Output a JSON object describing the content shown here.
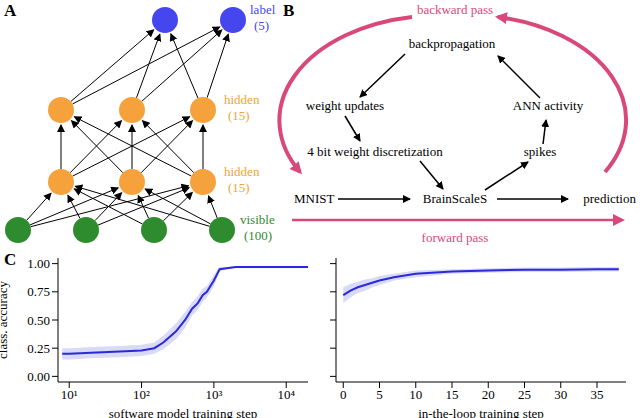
{
  "panels": {
    "A": {
      "letter": "A",
      "layers": [
        {
          "name": "visible",
          "count": "(100)",
          "color": "#2e8b2e",
          "nodes": 4
        },
        {
          "name": "hidden",
          "count": "(15)",
          "color": "#f5a23c",
          "nodes": 3
        },
        {
          "name": "hidden",
          "count": "(15)",
          "color": "#f5a23c",
          "nodes": 3
        },
        {
          "name": "label",
          "count": "(5)",
          "color": "#4646ee",
          "nodes": 2
        }
      ]
    },
    "B": {
      "letter": "B",
      "backward": "backward pass",
      "forward": "forward pass",
      "cycle": [
        "backpropagation",
        "weight updates",
        "4 bit weight discretization",
        "BrainScaleS",
        "spikes",
        "ANN activity"
      ],
      "input": "MNIST",
      "output": "prediction"
    },
    "C": {
      "letter": "C"
    }
  },
  "chart_data": [
    {
      "type": "line",
      "color": "#2a2ad6",
      "x": [
        8,
        10,
        20,
        50,
        100,
        150,
        200,
        300,
        400,
        500,
        600,
        700,
        800,
        1000,
        1200,
        1500,
        2000,
        5000,
        10000,
        20000
      ],
      "values": [
        0.2,
        0.2,
        0.21,
        0.22,
        0.23,
        0.25,
        0.3,
        0.4,
        0.5,
        0.6,
        0.65,
        0.72,
        0.75,
        0.85,
        0.95,
        0.96,
        0.97,
        0.97,
        0.97,
        0.97
      ],
      "error": [
        0.05,
        0.05,
        0.05,
        0.05,
        0.05,
        0.05,
        0.06,
        0.07,
        0.07,
        0.06,
        0.06,
        0.06,
        0.05,
        0.05,
        0.02,
        0.01,
        0.01,
        0.01,
        0.01,
        0.01
      ],
      "log": "x",
      "xlim": [
        7,
        20000
      ],
      "xticks": [
        {
          "value": 10,
          "label": "10¹"
        },
        {
          "value": 100,
          "label": "10²"
        },
        {
          "value": 1000,
          "label": "10³"
        },
        {
          "value": 10000,
          "label": "10⁴"
        }
      ],
      "ylim": [
        -0.05,
        1.05
      ],
      "yticks": [
        {
          "value": 0,
          "label": "0.00"
        },
        {
          "value": 0.25,
          "label": "0.25"
        },
        {
          "value": 0.5,
          "label": "0.50"
        },
        {
          "value": 0.75,
          "label": "0.75"
        },
        {
          "value": 1,
          "label": "1.00"
        }
      ],
      "x_label": "software model training step",
      "y_label": "class. accuracy"
    },
    {
      "type": "line",
      "color": "#2a2ad6",
      "x": [
        0,
        1,
        2,
        3,
        4,
        5,
        7,
        10,
        15,
        20,
        25,
        30,
        35,
        38
      ],
      "values": [
        0.72,
        0.76,
        0.79,
        0.81,
        0.83,
        0.85,
        0.88,
        0.91,
        0.93,
        0.94,
        0.945,
        0.945,
        0.95,
        0.95
      ],
      "error": [
        0.07,
        0.06,
        0.05,
        0.05,
        0.04,
        0.04,
        0.03,
        0.03,
        0.02,
        0.02,
        0.02,
        0.02,
        0.02,
        0.02
      ],
      "xlim": [
        -1,
        39
      ],
      "xticks": [
        0,
        5,
        10,
        15,
        20,
        25,
        30,
        35
      ],
      "ylim": [
        -0.05,
        1.05
      ],
      "yticks": [
        0,
        0.25,
        0.5,
        0.75,
        1
      ],
      "tick_labels": "x",
      "x_label": "in-the-loop training step"
    }
  ]
}
